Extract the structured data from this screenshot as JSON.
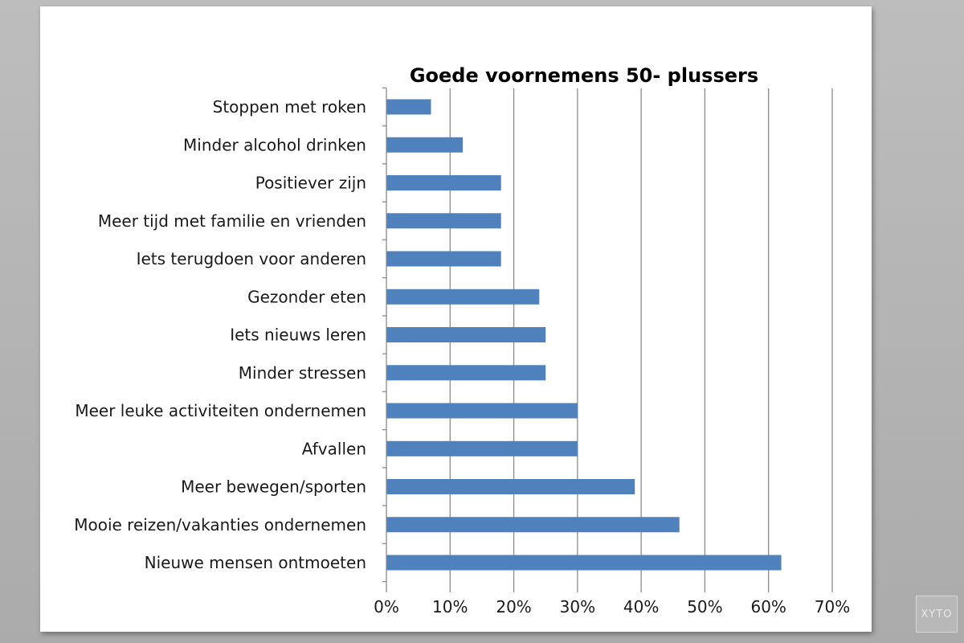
{
  "watermark": "XYTO",
  "chart_data": {
    "type": "bar",
    "orientation": "horizontal",
    "title": "Goede voornemens  50- plussers",
    "xlabel": "",
    "ylabel": "",
    "categories": [
      "Stoppen met roken",
      "Minder alcohol drinken",
      "Positiever zijn",
      "Meer tijd met familie en vrienden",
      "Iets terugdoen voor anderen",
      "Gezonder eten",
      "Iets nieuws leren",
      "Minder stressen",
      "Meer leuke activiteiten ondernemen",
      "Afvallen",
      "Meer bewegen/sporten",
      "Mooie reizen/vakanties ondernemen",
      "Nieuwe mensen ontmoeten"
    ],
    "values": [
      7,
      12,
      18,
      18,
      18,
      24,
      25,
      25,
      30,
      30,
      39,
      46,
      62
    ],
    "xlim": [
      0,
      70
    ],
    "xticks": [
      0,
      10,
      20,
      30,
      40,
      50,
      60,
      70
    ],
    "tick_labels": [
      "0%",
      "10%",
      "20%",
      "30%",
      "40%",
      "50%",
      "60%",
      "70%"
    ],
    "grid": true,
    "bar_color": "#4f81bd",
    "grid_color": "#8c8c8c"
  }
}
